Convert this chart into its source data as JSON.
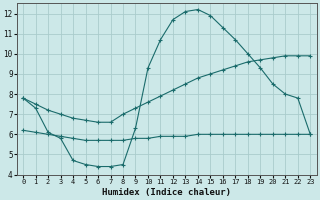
{
  "title": "",
  "xlabel": "Humidex (Indice chaleur)",
  "ylabel": "",
  "background_color": "#cce8e8",
  "grid_color": "#aacccc",
  "line_color": "#1a6b6b",
  "ylim": [
    4,
    12.5
  ],
  "xlim": [
    -0.5,
    23.5
  ],
  "yticks": [
    4,
    5,
    6,
    7,
    8,
    9,
    10,
    11,
    12
  ],
  "xticks": [
    0,
    1,
    2,
    3,
    4,
    5,
    6,
    7,
    8,
    9,
    10,
    11,
    12,
    13,
    14,
    15,
    16,
    17,
    18,
    19,
    20,
    21,
    22,
    23
  ],
  "series1_x": [
    0,
    1,
    2,
    3,
    4,
    5,
    6,
    7,
    8,
    9,
    10,
    11,
    12,
    13,
    14,
    15,
    16,
    17,
    18,
    19,
    20,
    21,
    22,
    23
  ],
  "series1_y": [
    7.8,
    7.3,
    6.1,
    5.8,
    4.7,
    4.5,
    4.4,
    4.4,
    4.5,
    6.3,
    9.3,
    10.7,
    11.7,
    12.1,
    12.2,
    11.9,
    11.3,
    10.7,
    10.0,
    9.3,
    8.5,
    8.0,
    7.8,
    6.0
  ],
  "series2_x": [
    0,
    1,
    2,
    3,
    4,
    5,
    6,
    7,
    8,
    9,
    10,
    11,
    12,
    13,
    14,
    15,
    16,
    17,
    18,
    19,
    20,
    21,
    22,
    23
  ],
  "series2_y": [
    7.8,
    7.5,
    7.2,
    7.0,
    6.8,
    6.7,
    6.6,
    6.6,
    7.0,
    7.3,
    7.6,
    7.9,
    8.2,
    8.5,
    8.8,
    9.0,
    9.2,
    9.4,
    9.6,
    9.7,
    9.8,
    9.9,
    9.9,
    9.9
  ],
  "series3_x": [
    0,
    1,
    2,
    3,
    4,
    5,
    6,
    7,
    8,
    9,
    10,
    11,
    12,
    13,
    14,
    15,
    16,
    17,
    18,
    19,
    20,
    21,
    22,
    23
  ],
  "series3_y": [
    6.2,
    6.1,
    6.0,
    5.9,
    5.8,
    5.7,
    5.7,
    5.7,
    5.7,
    5.8,
    5.8,
    5.9,
    5.9,
    5.9,
    6.0,
    6.0,
    6.0,
    6.0,
    6.0,
    6.0,
    6.0,
    6.0,
    6.0,
    6.0
  ]
}
